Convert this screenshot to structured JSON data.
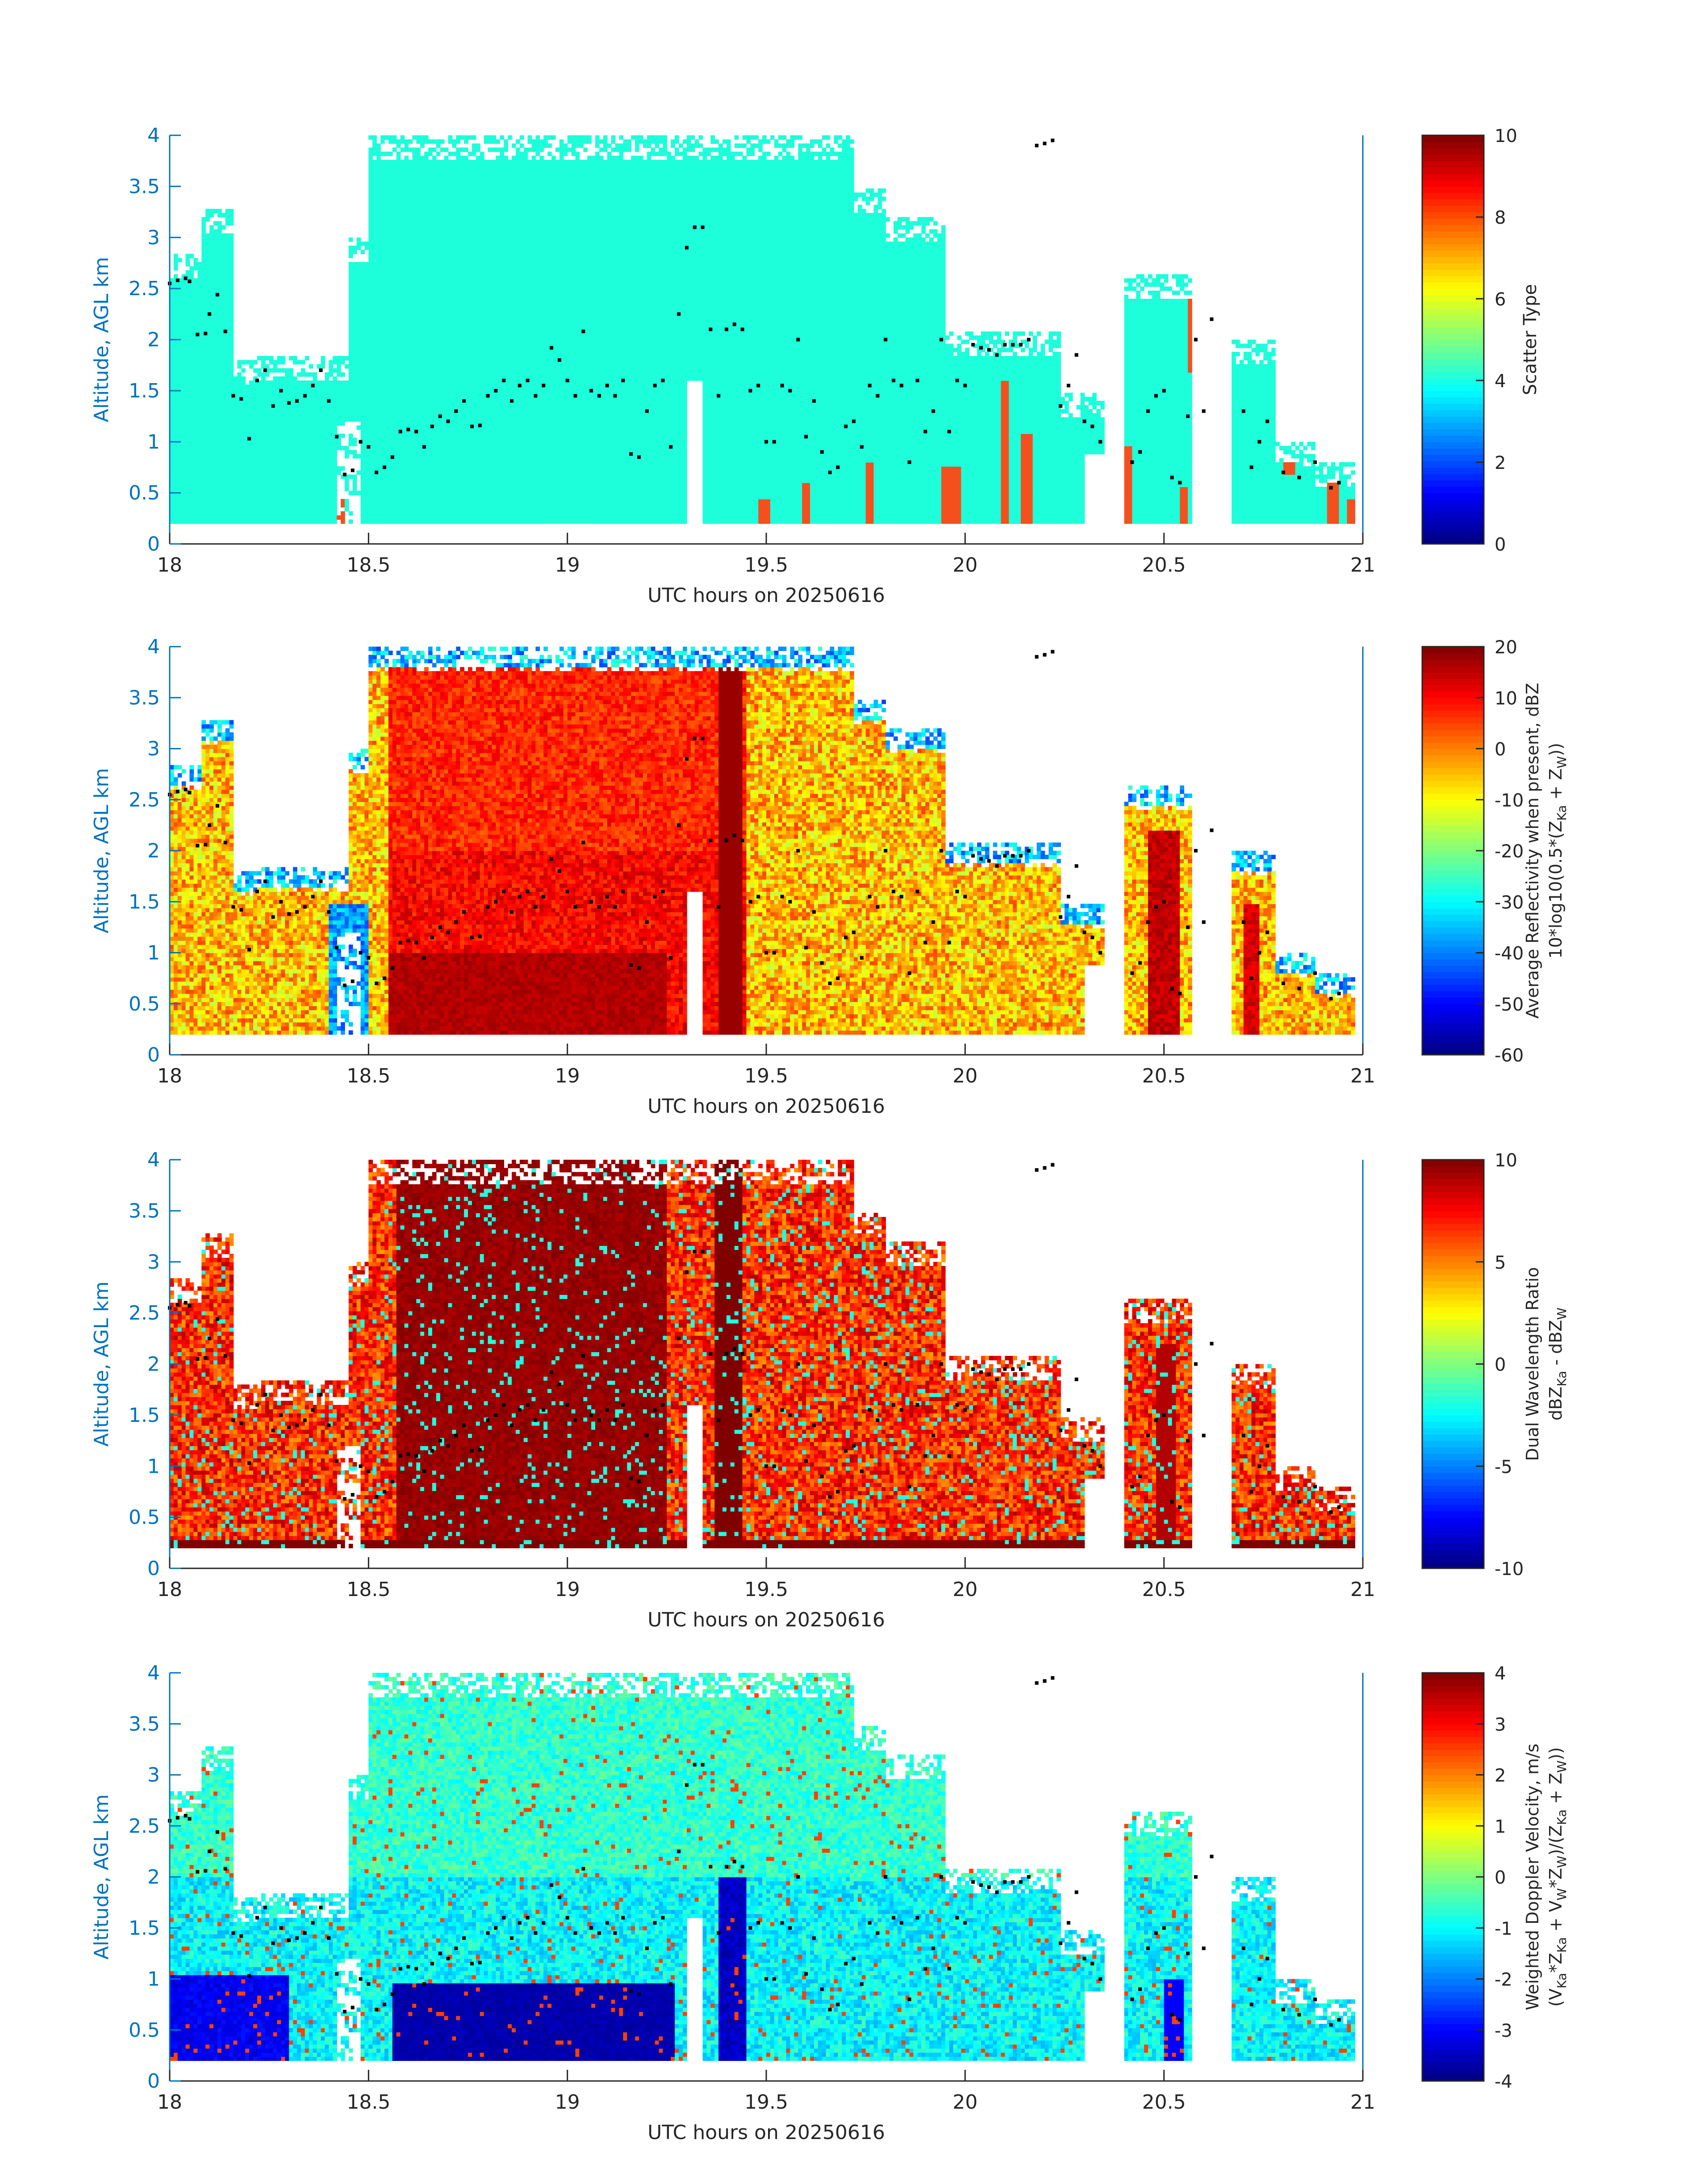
{
  "figure": {
    "colors": {
      "axis_blue": "#0072BD",
      "text_dark": "#262626",
      "scatter_teal": "#1DFFDB",
      "scatter_red": "#F4501E",
      "marker": "#000000"
    }
  },
  "chart_data": [
    {
      "type": "heatmap",
      "panel": "scatter-type",
      "xlabel": "UTC hours on 20250616",
      "ylabel": "Altitude, AGL km",
      "xlim": [
        18,
        21
      ],
      "ylim": [
        0,
        4
      ],
      "xticks": [
        "18",
        "18.5",
        "19",
        "19.5",
        "20",
        "20.5",
        "21"
      ],
      "yticks": [
        "0",
        "0.5",
        "1",
        "1.5",
        "2",
        "2.5",
        "3",
        "3.5",
        "4"
      ],
      "colorbar": {
        "label": "Scatter Type",
        "range": [
          0,
          10
        ],
        "ticks": [
          "0",
          "2",
          "4",
          "6",
          "8",
          "10"
        ]
      },
      "dominant_value": 4,
      "secondary_value": 8.8
    },
    {
      "type": "heatmap",
      "panel": "average-reflectivity",
      "xlabel": "UTC hours on 20250616",
      "ylabel": "Altitude, AGL km",
      "xlim": [
        18,
        21
      ],
      "ylim": [
        0,
        4
      ],
      "xticks": [
        "18",
        "18.5",
        "19",
        "19.5",
        "20",
        "20.5",
        "21"
      ],
      "yticks": [
        "0",
        "0.5",
        "1",
        "1.5",
        "2",
        "2.5",
        "3",
        "3.5",
        "4"
      ],
      "colorbar": {
        "label_line1": "Average Reflectivity when present, dBZ",
        "label_line2": "10*log10(0.5*(Z",
        "label_sub1": "Ka",
        "label_mid": " + Z",
        "label_sub2": "W",
        "label_end": "))",
        "range": [
          -60,
          20
        ],
        "ticks": [
          "-60",
          "-50",
          "-40",
          "-30",
          "-20",
          "-10",
          "0",
          "10",
          "20"
        ]
      }
    },
    {
      "type": "heatmap",
      "panel": "dual-wavelength-ratio",
      "xlabel": "UTC hours on 20250616",
      "ylabel": "Altitude, AGL km",
      "xlim": [
        18,
        21
      ],
      "ylim": [
        0,
        4
      ],
      "xticks": [
        "18",
        "18.5",
        "19",
        "19.5",
        "20",
        "20.5",
        "21"
      ],
      "yticks": [
        "0",
        "0.5",
        "1",
        "1.5",
        "2",
        "2.5",
        "3",
        "3.5",
        "4"
      ],
      "colorbar": {
        "label_line1": "Dual Wavelength Ratio",
        "label_a": "dBZ",
        "label_sub1": "Ka",
        "label_b": " - dBZ",
        "label_sub2": "W",
        "range": [
          -10,
          10
        ],
        "ticks": [
          "-10",
          "-5",
          "0",
          "5",
          "10"
        ]
      }
    },
    {
      "type": "heatmap",
      "panel": "weighted-doppler-velocity",
      "xlabel": "UTC hours on 20250616",
      "ylabel": "Altitude, AGL km",
      "xlim": [
        18,
        21
      ],
      "ylim": [
        0,
        4
      ],
      "xticks": [
        "18",
        "18.5",
        "19",
        "19.5",
        "20",
        "20.5",
        "21"
      ],
      "yticks": [
        "0",
        "0.5",
        "1",
        "1.5",
        "2",
        "2.5",
        "3",
        "3.5",
        "4"
      ],
      "colorbar": {
        "label_line1": "Weighted Doppler Velocity, m/s",
        "label_p1": "(V",
        "label_s1": "Ka",
        "label_p2": "*Z",
        "label_s2": "Ka",
        "label_p3": " + V",
        "label_s3": "W",
        "label_p4": "*Z",
        "label_s4": "W",
        "label_p5": ")/(Z",
        "label_s5": "Ka",
        "label_p6": " + Z",
        "label_s6": "W",
        "label_p7": "))",
        "range": [
          -4,
          4
        ],
        "ticks": [
          "-4",
          "-3",
          "-2",
          "-1",
          "0",
          "1",
          "2",
          "3",
          "4"
        ]
      }
    }
  ],
  "cloud_base": {
    "description_free": true,
    "hours": [
      18.0,
      18.02,
      18.04,
      18.05,
      18.07,
      18.09,
      18.1,
      18.12,
      18.14,
      18.16,
      18.18,
      18.2,
      18.22,
      18.24,
      18.26,
      18.28,
      18.3,
      18.32,
      18.34,
      18.36,
      18.38,
      18.4,
      18.42,
      18.44,
      18.46,
      18.48,
      18.5,
      18.52,
      18.54,
      18.56,
      18.58,
      18.6,
      18.62,
      18.64,
      18.66,
      18.68,
      18.7,
      18.72,
      18.74,
      18.76,
      18.78,
      18.8,
      18.82,
      18.84,
      18.86,
      18.88,
      18.9,
      18.92,
      18.94,
      18.96,
      18.98,
      19.0,
      19.02,
      19.04,
      19.06,
      19.08,
      19.1,
      19.12,
      19.14,
      19.16,
      19.18,
      19.2,
      19.22,
      19.24,
      19.26,
      19.28,
      19.3,
      19.32,
      19.34,
      19.36,
      19.38,
      19.4,
      19.42,
      19.44,
      19.46,
      19.48,
      19.5,
      19.52,
      19.54,
      19.56,
      19.58,
      19.6,
      19.62,
      19.64,
      19.66,
      19.68,
      19.7,
      19.72,
      19.74,
      19.76,
      19.78,
      19.8,
      19.82,
      19.84,
      19.86,
      19.88,
      19.9,
      19.92,
      19.94,
      19.96,
      19.98,
      20.0,
      20.02,
      20.04,
      20.06,
      20.08,
      20.1,
      20.12,
      20.14,
      20.16,
      20.18,
      20.2,
      20.22,
      20.24,
      20.26,
      20.28,
      20.3,
      20.32,
      20.34,
      20.42,
      20.44,
      20.46,
      20.48,
      20.5,
      20.52,
      20.54,
      20.56,
      20.58,
      20.6,
      20.62,
      20.7,
      20.72,
      20.74,
      20.76,
      20.8,
      20.84,
      20.88,
      20.92,
      20.94
    ],
    "altitudes_km": [
      2.55,
      2.58,
      2.6,
      2.57,
      2.05,
      2.06,
      2.25,
      2.44,
      2.08,
      1.45,
      1.42,
      1.03,
      1.6,
      1.7,
      1.35,
      1.5,
      1.38,
      1.4,
      1.45,
      1.55,
      1.7,
      1.4,
      1.05,
      0.68,
      0.72,
      1.0,
      0.95,
      0.7,
      0.75,
      0.85,
      1.1,
      1.12,
      1.1,
      0.95,
      1.15,
      1.25,
      1.2,
      1.3,
      1.4,
      1.15,
      1.16,
      1.45,
      1.5,
      1.6,
      1.4,
      1.55,
      1.6,
      1.45,
      1.55,
      1.92,
      1.8,
      1.6,
      1.45,
      2.08,
      1.5,
      1.45,
      1.55,
      1.45,
      1.6,
      0.88,
      0.85,
      1.3,
      1.55,
      1.6,
      0.95,
      2.25,
      2.9,
      3.1,
      3.1,
      2.1,
      1.45,
      2.1,
      2.15,
      2.1,
      1.5,
      1.55,
      1.0,
      1.0,
      1.55,
      1.5,
      2.0,
      1.05,
      1.4,
      0.9,
      0.7,
      0.75,
      1.15,
      1.2,
      0.95,
      1.55,
      1.45,
      2.0,
      1.6,
      1.55,
      0.8,
      1.6,
      1.1,
      1.3,
      2.0,
      1.1,
      1.6,
      1.55,
      1.95,
      1.92,
      1.9,
      1.85,
      1.95,
      1.95,
      1.95,
      2.0,
      3.9,
      3.92,
      3.95,
      1.35,
      1.55,
      1.85,
      1.2,
      1.15,
      1.0,
      0.8,
      0.9,
      1.3,
      1.45,
      1.5,
      0.65,
      0.6,
      1.25,
      2.0,
      1.3,
      2.2,
      1.3,
      0.75,
      1.0,
      1.2,
      0.7,
      0.65,
      0.8,
      0.55,
      0.6
    ]
  }
}
